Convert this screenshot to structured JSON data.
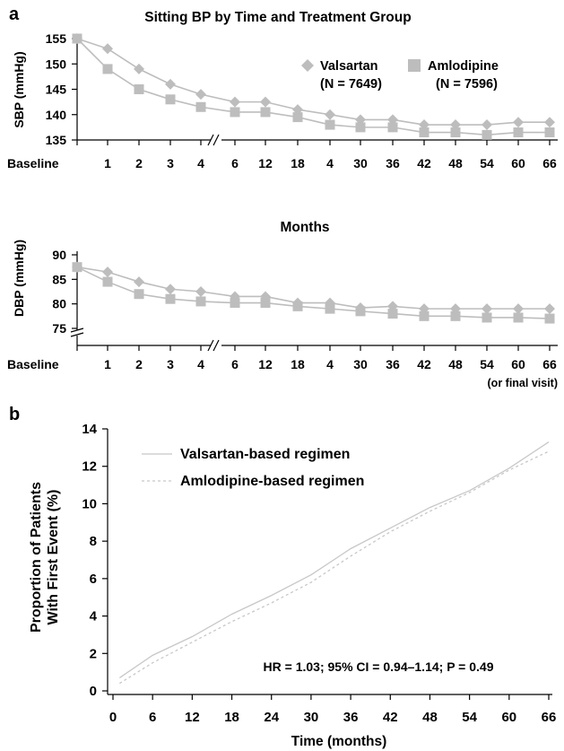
{
  "chart_data": [
    {
      "panel": "a",
      "type": "line",
      "title": "Sitting BP by Time and Treatment Group",
      "categories": [
        "Baseline",
        "1",
        "2",
        "3",
        "4",
        "6",
        "12",
        "18",
        "4",
        "30",
        "36",
        "42",
        "48",
        "54",
        "60",
        "66"
      ],
      "ylabel": "SBP (mmHg)",
      "ylim": [
        135,
        155
      ],
      "yticks": [
        135,
        140,
        145,
        150,
        155
      ],
      "axis_break": "between 4 and 6",
      "legend_position": "top-right",
      "series": [
        {
          "name": "Valsartan",
          "n_label": "(N = 7649)",
          "marker": "diamond",
          "color": "#bdbdbd",
          "values": [
            155,
            153,
            149,
            146,
            144,
            142.5,
            142.5,
            141,
            140,
            139,
            139,
            138,
            138,
            138,
            138.5,
            138.5
          ]
        },
        {
          "name": "Amlodipine",
          "n_label": "(N = 7596)",
          "marker": "square",
          "color": "#bdbdbd",
          "values": [
            155,
            149,
            145,
            143,
            141.5,
            140.5,
            140.5,
            139.5,
            138,
            137.5,
            137.5,
            136.5,
            136.5,
            136,
            136.5,
            136.5
          ]
        }
      ]
    },
    {
      "panel": "a",
      "type": "line",
      "title": "Months",
      "categories": [
        "Baseline",
        "1",
        "2",
        "3",
        "4",
        "6",
        "12",
        "18",
        "4",
        "30",
        "36",
        "42",
        "48",
        "54",
        "60",
        "66"
      ],
      "xnote": "(or final visit)",
      "ylabel": "DBP (mmHg)",
      "ylim": [
        75,
        90
      ],
      "yticks": [
        75,
        80,
        85,
        90
      ],
      "axis_break": "between 4 and 6",
      "series": [
        {
          "name": "Valsartan",
          "marker": "diamond",
          "color": "#bdbdbd",
          "values": [
            87.5,
            86.5,
            84.5,
            83,
            82.5,
            81.5,
            81.5,
            80.2,
            80.2,
            79.2,
            79.5,
            79,
            79,
            79,
            79,
            79
          ]
        },
        {
          "name": "Amlodipine",
          "marker": "square",
          "color": "#bdbdbd",
          "values": [
            87.5,
            84.5,
            82,
            81,
            80.5,
            80.2,
            80.2,
            79.5,
            79,
            78.5,
            78,
            77.5,
            77.5,
            77.2,
            77.2,
            77
          ]
        }
      ]
    },
    {
      "panel": "b",
      "type": "line",
      "xlabel": "Time (months)",
      "ylabel_lines": [
        "Proportion of Patients",
        "With First Event (%)"
      ],
      "xlim": [
        0,
        66
      ],
      "ylim": [
        0,
        14
      ],
      "xticks": [
        0,
        6,
        12,
        18,
        24,
        30,
        36,
        42,
        48,
        54,
        60,
        66
      ],
      "yticks": [
        0,
        2,
        4,
        6,
        8,
        10,
        12,
        14
      ],
      "annotation": "HR = 1.03; 95% CI = 0.94–1.14; P = 0.49",
      "legend_position": "top-left",
      "series": [
        {
          "name": "Valsartan-based regimen",
          "style": "solid",
          "color": "#c8c8c8",
          "x": [
            1,
            6,
            12,
            18,
            24,
            30,
            36,
            42,
            48,
            54,
            60,
            66
          ],
          "y": [
            0.7,
            1.9,
            2.9,
            4.1,
            5.1,
            6.2,
            7.6,
            8.7,
            9.8,
            10.7,
            11.9,
            13.3
          ]
        },
        {
          "name": "Amlodipine-based regimen",
          "style": "dashed",
          "color": "#c8c8c8",
          "x": [
            1,
            6,
            12,
            18,
            24,
            30,
            36,
            42,
            48,
            54,
            60,
            66
          ],
          "y": [
            0.4,
            1.5,
            2.6,
            3.7,
            4.7,
            5.8,
            7.2,
            8.5,
            9.6,
            10.6,
            11.8,
            12.8
          ]
        }
      ]
    }
  ]
}
